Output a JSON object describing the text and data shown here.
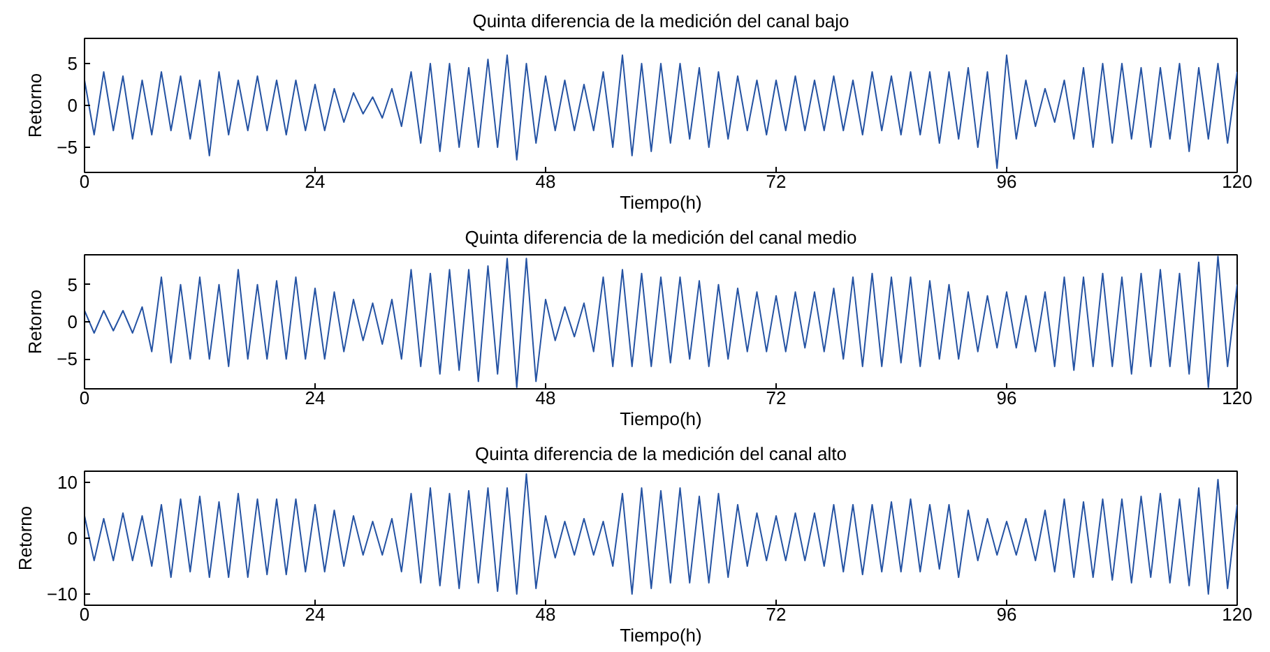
{
  "chart_data": [
    {
      "type": "line",
      "title": "Quinta diferencia de la medición del canal bajo",
      "xlabel": "Tiempo(h)",
      "ylabel": "Retorno",
      "xlim": [
        0,
        120
      ],
      "xticks": [
        0,
        24,
        48,
        72,
        96,
        120
      ],
      "ylim": [
        -8,
        8
      ],
      "yticks": [
        -5,
        0,
        5
      ],
      "grid": false,
      "x": [
        0,
        1,
        2,
        3,
        4,
        5,
        6,
        7,
        8,
        9,
        10,
        11,
        12,
        13,
        14,
        15,
        16,
        17,
        18,
        19,
        20,
        21,
        22,
        23,
        24,
        25,
        26,
        27,
        28,
        29,
        30,
        31,
        32,
        33,
        34,
        35,
        36,
        37,
        38,
        39,
        40,
        41,
        42,
        43,
        44,
        45,
        46,
        47,
        48,
        49,
        50,
        51,
        52,
        53,
        54,
        55,
        56,
        57,
        58,
        59,
        60,
        61,
        62,
        63,
        64,
        65,
        66,
        67,
        68,
        69,
        70,
        71,
        72,
        73,
        74,
        75,
        76,
        77,
        78,
        79,
        80,
        81,
        82,
        83,
        84,
        85,
        86,
        87,
        88,
        89,
        90,
        91,
        92,
        93,
        94,
        95,
        96,
        97,
        98,
        99,
        100,
        101,
        102,
        103,
        104,
        105,
        106,
        107,
        108,
        109,
        110,
        111,
        112,
        113,
        114,
        115,
        116,
        117,
        118,
        119,
        120
      ],
      "series": [
        {
          "color": "#2553a3",
          "values": [
            3,
            -3.5,
            4,
            -3,
            3.5,
            -4,
            3,
            -3.5,
            4,
            -3,
            3.5,
            -4,
            3,
            -6,
            4,
            -3.5,
            3,
            -3,
            3.5,
            -3,
            3,
            -3.5,
            3,
            -3,
            2.5,
            -3,
            2,
            -2,
            1.5,
            -1,
            1,
            -1.5,
            2,
            -2.5,
            4,
            -4.5,
            5,
            -5.5,
            5,
            -5,
            4.5,
            -5,
            5.5,
            -5,
            6,
            -6.5,
            5,
            -4.5,
            3.5,
            -3,
            3,
            -3,
            2.5,
            -3,
            4,
            -5,
            6,
            -6,
            5,
            -5.5,
            5,
            -4.5,
            5,
            -4,
            4.5,
            -5,
            4,
            -4,
            3.5,
            -3,
            3,
            -3.5,
            3,
            -3,
            3.5,
            -3,
            3,
            -3,
            3.5,
            -3,
            3,
            -3.5,
            4,
            -3,
            3.5,
            -3.5,
            4,
            -3.5,
            4,
            -4.5,
            4,
            -4,
            4.5,
            -5,
            4,
            -7.5,
            6,
            -4,
            3,
            -2.5,
            2,
            -2,
            3,
            -4,
            4.5,
            -5,
            5,
            -4.5,
            5,
            -4,
            4.5,
            -5,
            4.5,
            -4,
            5,
            -5.5,
            4.5,
            -4,
            5,
            -4.5,
            4
          ]
        }
      ]
    },
    {
      "type": "line",
      "title": "Quinta diferencia de la medición del canal medio",
      "xlabel": "Tiempo(h)",
      "ylabel": "Retorno",
      "xlim": [
        0,
        120
      ],
      "xticks": [
        0,
        24,
        48,
        72,
        96,
        120
      ],
      "ylim": [
        -9,
        9
      ],
      "yticks": [
        -5,
        0,
        5
      ],
      "grid": false,
      "x": [
        0,
        1,
        2,
        3,
        4,
        5,
        6,
        7,
        8,
        9,
        10,
        11,
        12,
        13,
        14,
        15,
        16,
        17,
        18,
        19,
        20,
        21,
        22,
        23,
        24,
        25,
        26,
        27,
        28,
        29,
        30,
        31,
        32,
        33,
        34,
        35,
        36,
        37,
        38,
        39,
        40,
        41,
        42,
        43,
        44,
        45,
        46,
        47,
        48,
        49,
        50,
        51,
        52,
        53,
        54,
        55,
        56,
        57,
        58,
        59,
        60,
        61,
        62,
        63,
        64,
        65,
        66,
        67,
        68,
        69,
        70,
        71,
        72,
        73,
        74,
        75,
        76,
        77,
        78,
        79,
        80,
        81,
        82,
        83,
        84,
        85,
        86,
        87,
        88,
        89,
        90,
        91,
        92,
        93,
        94,
        95,
        96,
        97,
        98,
        99,
        100,
        101,
        102,
        103,
        104,
        105,
        106,
        107,
        108,
        109,
        110,
        111,
        112,
        113,
        114,
        115,
        116,
        117,
        118,
        119,
        120
      ],
      "series": [
        {
          "color": "#2553a3",
          "values": [
            1.5,
            -1.5,
            1.5,
            -1.2,
            1.5,
            -1.5,
            2,
            -4,
            6,
            -5.5,
            5,
            -5,
            6,
            -5,
            5,
            -6,
            7,
            -5,
            5,
            -5,
            5.5,
            -5,
            6,
            -5,
            4.5,
            -5,
            4,
            -4,
            3,
            -2.5,
            2.5,
            -3,
            3,
            -5,
            7,
            -6,
            6.5,
            -7,
            7,
            -6.5,
            7,
            -8,
            7.5,
            -7,
            8.5,
            -8.8,
            8.5,
            -8,
            3,
            -2.5,
            2,
            -2,
            2.5,
            -4,
            6,
            -6,
            7,
            -6,
            6.5,
            -6,
            6,
            -5.5,
            6,
            -5,
            5.5,
            -6,
            5,
            -5,
            4.5,
            -4,
            4,
            -4,
            3.5,
            -4,
            4,
            -3.5,
            4,
            -4,
            4.5,
            -5,
            6,
            -6,
            6.5,
            -6,
            6,
            -5.5,
            6,
            -6,
            5.5,
            -5,
            5,
            -5,
            4,
            -4,
            3.5,
            -3.5,
            4,
            -3.5,
            3.5,
            -4,
            4,
            -6,
            6,
            -6.5,
            6,
            -6,
            6.5,
            -6,
            6,
            -7,
            6.5,
            -6,
            7,
            -6,
            6.5,
            -7,
            8,
            -8.8,
            8.8,
            -6,
            5
          ]
        }
      ]
    },
    {
      "type": "line",
      "title": "Quinta diferencia de la medición del canal alto",
      "xlabel": "Tiempo(h)",
      "ylabel": "Retorno",
      "xlim": [
        0,
        120
      ],
      "xticks": [
        0,
        24,
        48,
        72,
        96,
        120
      ],
      "ylim": [
        -12,
        12
      ],
      "yticks": [
        -10,
        0,
        10
      ],
      "grid": false,
      "x": [
        0,
        1,
        2,
        3,
        4,
        5,
        6,
        7,
        8,
        9,
        10,
        11,
        12,
        13,
        14,
        15,
        16,
        17,
        18,
        19,
        20,
        21,
        22,
        23,
        24,
        25,
        26,
        27,
        28,
        29,
        30,
        31,
        32,
        33,
        34,
        35,
        36,
        37,
        38,
        39,
        40,
        41,
        42,
        43,
        44,
        45,
        46,
        47,
        48,
        49,
        50,
        51,
        52,
        53,
        54,
        55,
        56,
        57,
        58,
        59,
        60,
        61,
        62,
        63,
        64,
        65,
        66,
        67,
        68,
        69,
        70,
        71,
        72,
        73,
        74,
        75,
        76,
        77,
        78,
        79,
        80,
        81,
        82,
        83,
        84,
        85,
        86,
        87,
        88,
        89,
        90,
        91,
        92,
        93,
        94,
        95,
        96,
        97,
        98,
        99,
        100,
        101,
        102,
        103,
        104,
        105,
        106,
        107,
        108,
        109,
        110,
        111,
        112,
        113,
        114,
        115,
        116,
        117,
        118,
        119,
        120
      ],
      "series": [
        {
          "color": "#2553a3",
          "values": [
            4,
            -4,
            3.5,
            -4,
            4.5,
            -4,
            4,
            -5,
            6,
            -7,
            7,
            -6,
            7.5,
            -7,
            6.5,
            -7,
            8,
            -7,
            7,
            -6.5,
            7,
            -6.5,
            7,
            -6,
            6,
            -6,
            5,
            -5,
            4,
            -3,
            3,
            -3,
            3.5,
            -6,
            8,
            -8,
            9,
            -8.5,
            8,
            -9,
            8.5,
            -8,
            9,
            -9.5,
            9,
            -10,
            11.5,
            -9,
            4,
            -3.5,
            3,
            -3,
            3.5,
            -3,
            3,
            -5,
            8,
            -10,
            9,
            -9,
            8.5,
            -8,
            9,
            -8,
            7.5,
            -8,
            8,
            -7,
            6,
            -5,
            4.5,
            -4,
            4,
            -4,
            4.5,
            -4,
            4.5,
            -5,
            6,
            -6,
            6,
            -6.5,
            6,
            -6,
            6.5,
            -6,
            7,
            -6,
            6,
            -5.5,
            6,
            -7,
            5,
            -4,
            3.5,
            -3,
            3,
            -3,
            3.5,
            -4,
            5,
            -6,
            7,
            -7,
            6.5,
            -7,
            7,
            -7.5,
            7,
            -8,
            7.5,
            -7,
            8,
            -8,
            7,
            -8.5,
            9,
            -10,
            10.5,
            -9,
            6
          ]
        }
      ]
    }
  ]
}
